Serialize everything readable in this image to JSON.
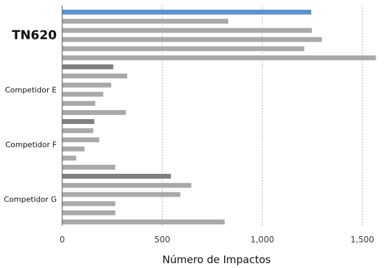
{
  "chart_data": {
    "type": "bar",
    "orientation": "horizontal",
    "xlabel": "Número de Impactos",
    "xlim": [
      0,
      1570
    ],
    "xticks": [
      0,
      500,
      1000,
      1500
    ],
    "xtick_labels": [
      "0",
      "500",
      "1,000",
      "1,500"
    ],
    "grid": "vertical dotted",
    "highlight_color": "#5b93d1",
    "lead_color": "#808080",
    "bar_color": "#a9a9a9",
    "groups": [
      {
        "label": "TN620",
        "values": [
          1245,
          830,
          1248,
          1298,
          1210,
          1568
        ]
      },
      {
        "label": "Competidor E",
        "values": [
          255,
          325,
          245,
          205,
          165,
          318
        ]
      },
      {
        "label": "Competidor F",
        "values": [
          160,
          155,
          185,
          112,
          70,
          265
        ]
      },
      {
        "label": "Competidor G",
        "values": [
          543,
          645,
          590,
          265,
          265,
          812
        ]
      }
    ]
  }
}
